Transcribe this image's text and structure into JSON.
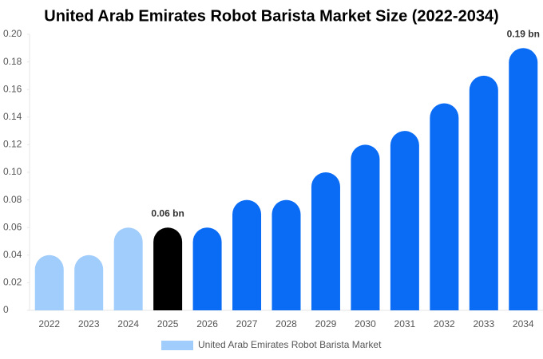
{
  "chart_data": {
    "type": "bar",
    "title": "United Arab Emirates Robot Barista Market Size (2022-2034)",
    "categories": [
      "2022",
      "2023",
      "2024",
      "2025",
      "2026",
      "2027",
      "2028",
      "2029",
      "2030",
      "2031",
      "2032",
      "2033",
      "2034"
    ],
    "series": [
      {
        "name": "United Arab Emirates Robot Barista Market",
        "color": "#a0cdfc",
        "values": [
          0.04,
          0.04,
          0.06,
          0.06,
          0.06,
          0.08,
          0.08,
          0.1,
          0.12,
          0.13,
          0.15,
          0.17,
          0.19
        ],
        "colors": [
          "#a0cdfc",
          "#a0cdfc",
          "#a0cdfc",
          "#000000",
          "#0a6cf5",
          "#0a6cf5",
          "#0a6cf5",
          "#0a6cf5",
          "#0a6cf5",
          "#0a6cf5",
          "#0a6cf5",
          "#0a6cf5",
          "#0a6cf5"
        ],
        "value_labels": [
          null,
          null,
          null,
          "0.06 bn",
          null,
          null,
          null,
          null,
          null,
          null,
          null,
          null,
          "0.19 bn"
        ]
      }
    ],
    "ylim": [
      0,
      0.2
    ],
    "yticks": [
      0,
      0.02,
      0.04,
      0.06,
      0.08,
      {
        "value": 0.1,
        "label": "0.10"
      },
      0.12,
      0.14,
      0.16,
      0.18,
      {
        "value": 0.2,
        "label": "0.20"
      }
    ],
    "grid": false
  }
}
